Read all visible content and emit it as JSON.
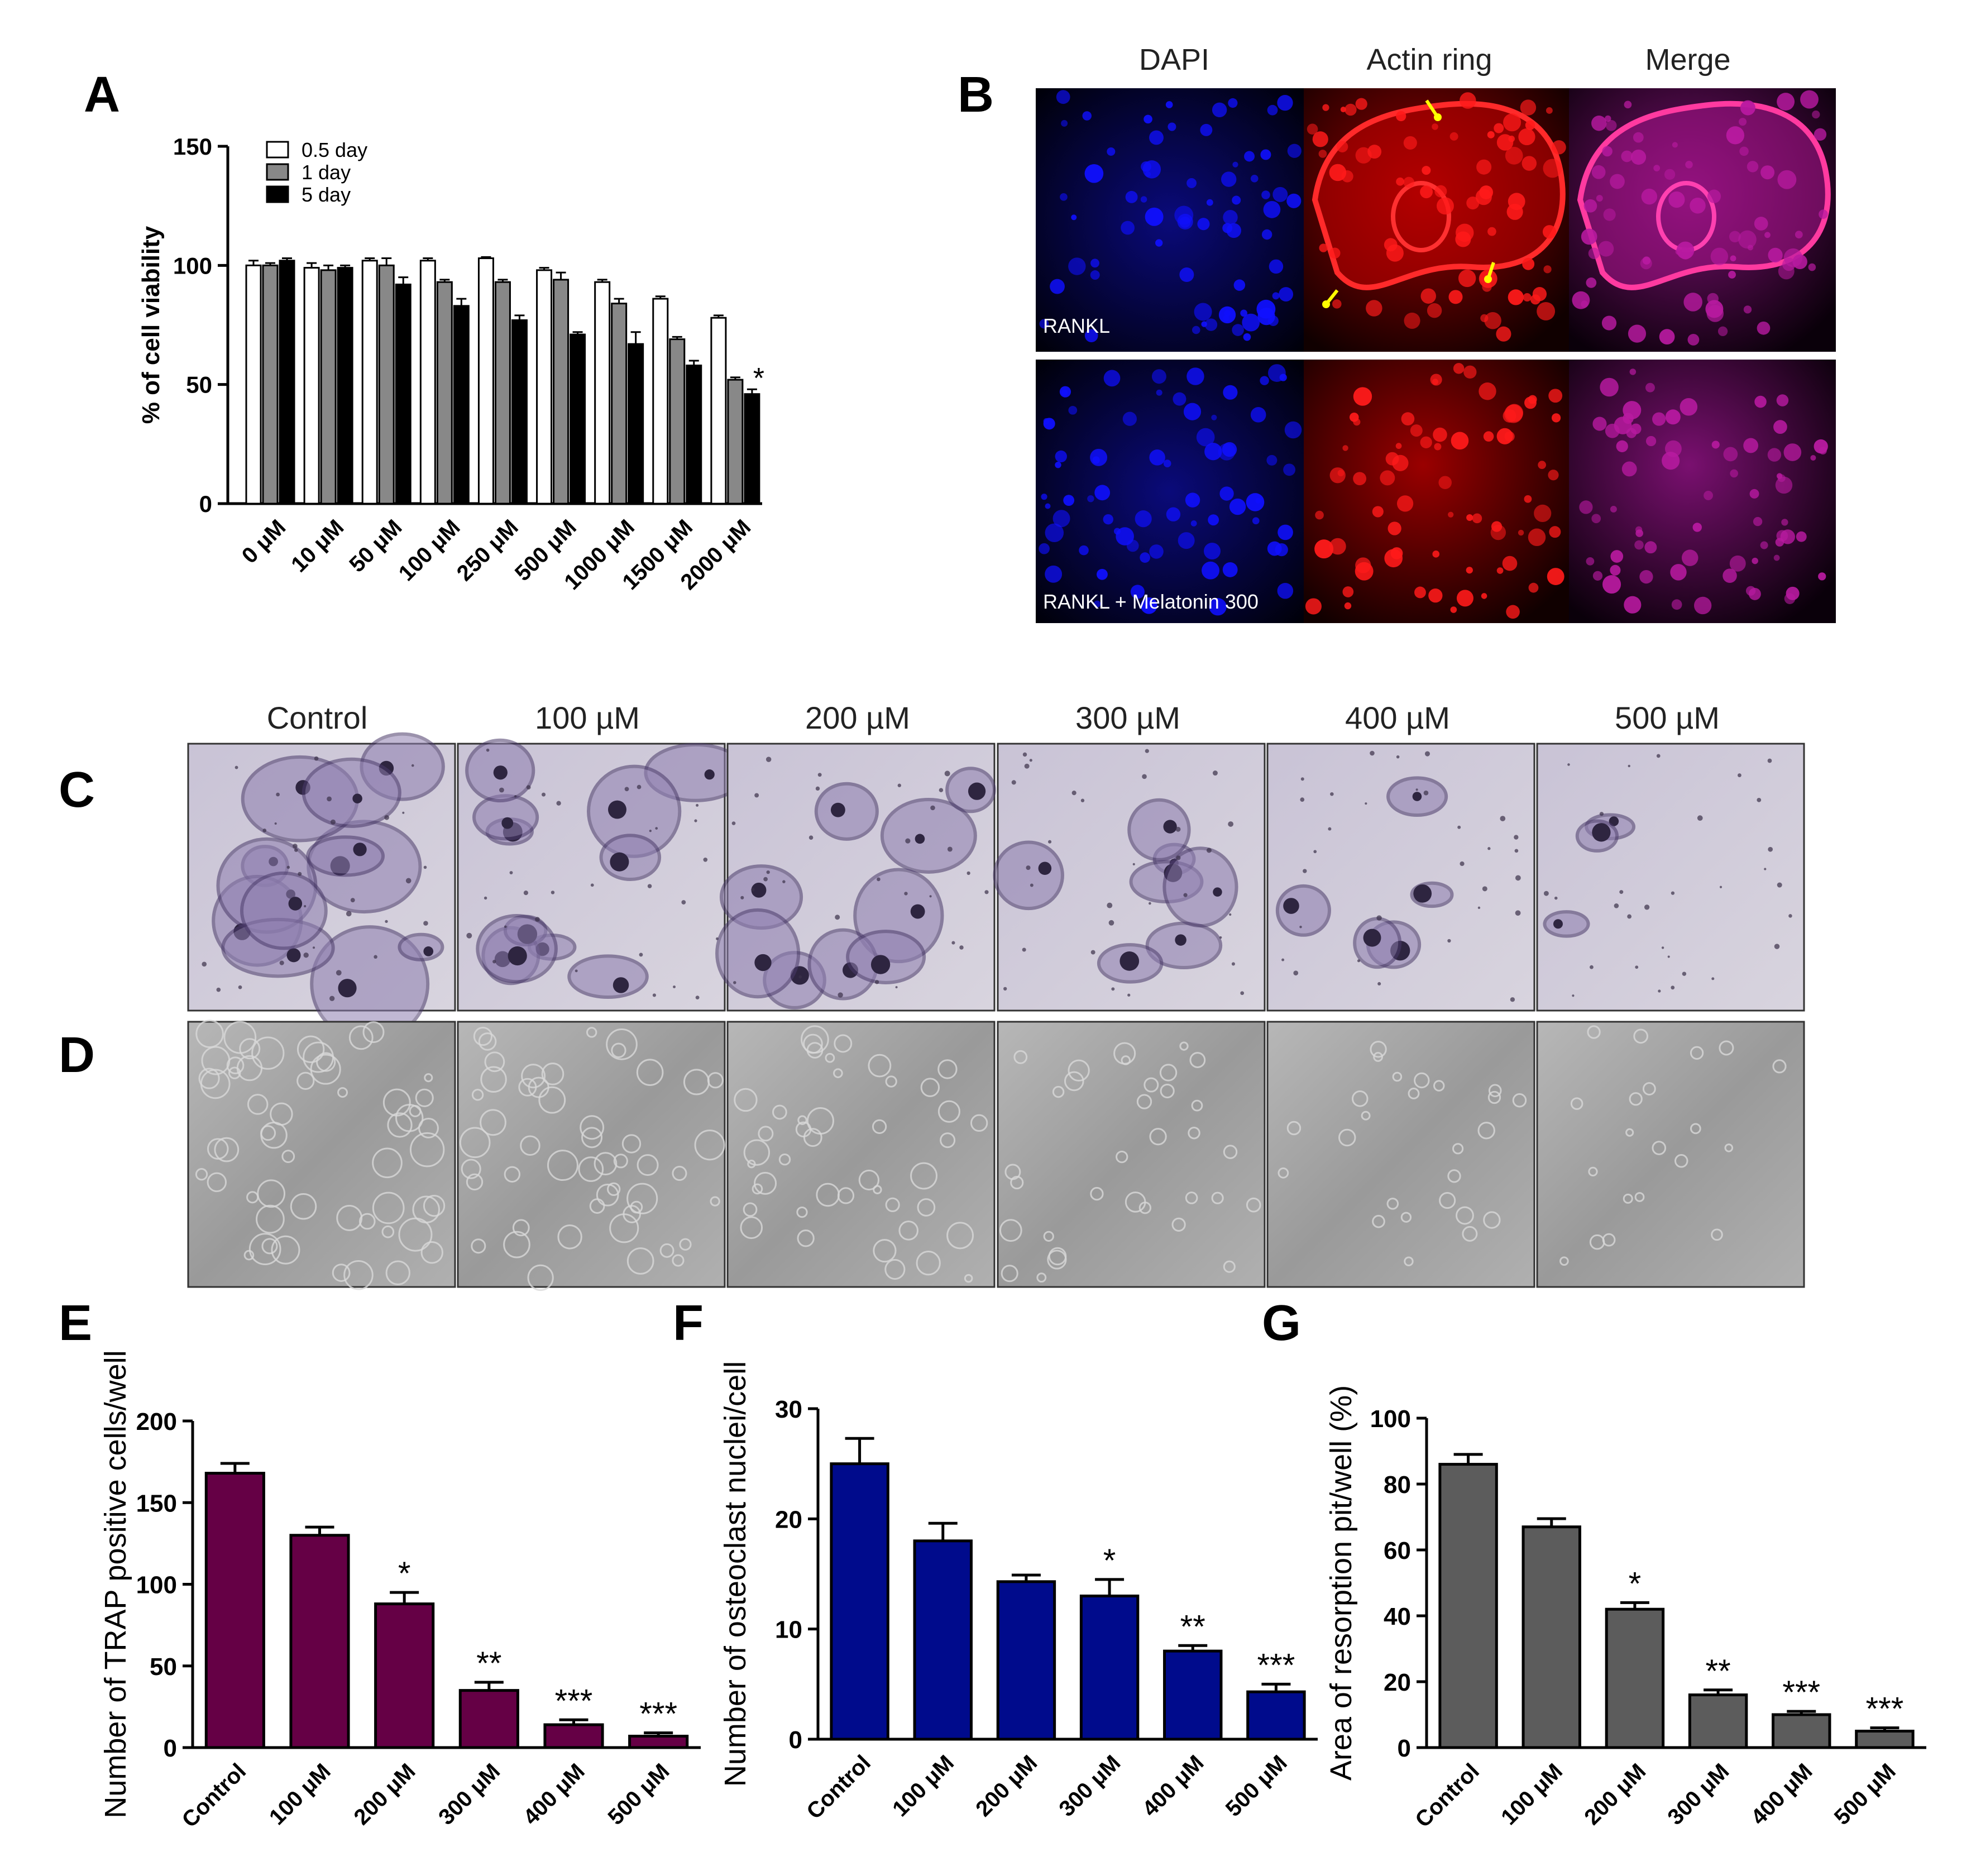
{
  "panels": {
    "A": {
      "label": "A"
    },
    "B": {
      "label": "B",
      "col_headers": [
        "DAPI",
        "Actin ring",
        "Merge"
      ],
      "row_labels": [
        "RANKL",
        "RANKL + Melatonin 300"
      ]
    },
    "C": {
      "label": "C"
    },
    "D": {
      "label": "D"
    },
    "CD_col_headers": [
      "Control",
      "100 µM",
      "200 µM",
      "300 µM",
      "400 µM",
      "500 µM"
    ],
    "E": {
      "label": "E"
    },
    "F": {
      "label": "F"
    },
    "G": {
      "label": "G"
    }
  },
  "colors": {
    "series_05day": "#ffffff",
    "series_1day": "#888888",
    "series_5day": "#000000",
    "E_bars": "#650045",
    "F_bars": "#000b8c",
    "G_bars": "#5c5c5c",
    "dapi": "#1010ff",
    "actin": "#ff1a1a",
    "merge": "#b81aa0",
    "trap_stain": "#6f5a8f",
    "arrow": "#ffff00"
  },
  "chart_data": [
    {
      "id": "A",
      "type": "bar",
      "title": "",
      "xlabel": "",
      "ylabel": "% of cell viability",
      "ylim": [
        0,
        150
      ],
      "yticks": [
        0,
        50,
        100,
        150
      ],
      "categories": [
        "0  μM",
        "10  μM",
        "50  μM",
        "100  μM",
        "250  μM",
        "500  μM",
        "1000  μM",
        "1500  μM",
        "2000  μM"
      ],
      "series": [
        {
          "name": "0.5 day",
          "values": [
            100,
            99,
            102,
            102,
            103,
            98,
            93,
            86,
            78
          ],
          "errors": [
            2,
            2,
            1,
            1,
            0.5,
            1,
            1,
            1,
            1
          ]
        },
        {
          "name": "1 day",
          "values": [
            100,
            98,
            100,
            93,
            93,
            94,
            84,
            69,
            52
          ],
          "errors": [
            1,
            2,
            3,
            1,
            1,
            3,
            2,
            1,
            1
          ]
        },
        {
          "name": "5 day",
          "values": [
            102,
            99,
            92,
            83,
            77,
            71,
            67,
            58,
            46
          ],
          "errors": [
            1,
            1,
            3,
            3,
            2,
            1,
            5,
            2,
            2
          ]
        }
      ],
      "significance": [
        "",
        "",
        "",
        "",
        "",
        "",
        "",
        "",
        "*"
      ],
      "legend": "top-left",
      "grid": false
    },
    {
      "id": "E",
      "type": "bar",
      "title": "",
      "xlabel": "",
      "ylabel": "Number of TRAP positive cells/well",
      "ylim": [
        0,
        200
      ],
      "yticks": [
        0,
        50,
        100,
        150,
        200
      ],
      "categories": [
        "Control",
        "100 μM",
        "200 μM",
        "300 μM",
        "400 μM",
        "500 μM"
      ],
      "values": [
        168,
        130,
        88,
        35,
        14,
        7
      ],
      "errors": [
        6,
        5,
        7,
        5,
        3,
        2
      ],
      "significance": [
        "",
        "",
        "*",
        "**",
        "***",
        "***"
      ],
      "grid": false
    },
    {
      "id": "F",
      "type": "bar",
      "title": "",
      "xlabel": "",
      "ylabel": "Number of osteoclast nuclei/cell",
      "ylim": [
        0,
        30
      ],
      "yticks": [
        0,
        10,
        20,
        30
      ],
      "categories": [
        "Control",
        "100 μM",
        "200 μM",
        "300 μM",
        "400 μM",
        "500 μM"
      ],
      "values": [
        25,
        18,
        14.3,
        13,
        8,
        4.3
      ],
      "errors": [
        2.3,
        1.6,
        0.6,
        1.5,
        0.5,
        0.7
      ],
      "significance": [
        "",
        "",
        "",
        "*",
        "**",
        "***"
      ],
      "grid": false
    },
    {
      "id": "G",
      "type": "bar",
      "title": "",
      "xlabel": "",
      "ylabel": "Area of resorption pit/well (%)",
      "ylim": [
        0,
        100
      ],
      "yticks": [
        0,
        20,
        40,
        60,
        80,
        100
      ],
      "categories": [
        "Control",
        "100 μM",
        "200 μM",
        "300 μM",
        "400 μM",
        "500 μM"
      ],
      "values": [
        86,
        67,
        42,
        16,
        10,
        5
      ],
      "errors": [
        3,
        2.5,
        2,
        1.5,
        1,
        1
      ],
      "significance": [
        "",
        "",
        "*",
        "**",
        "***",
        "***"
      ],
      "grid": false
    }
  ]
}
